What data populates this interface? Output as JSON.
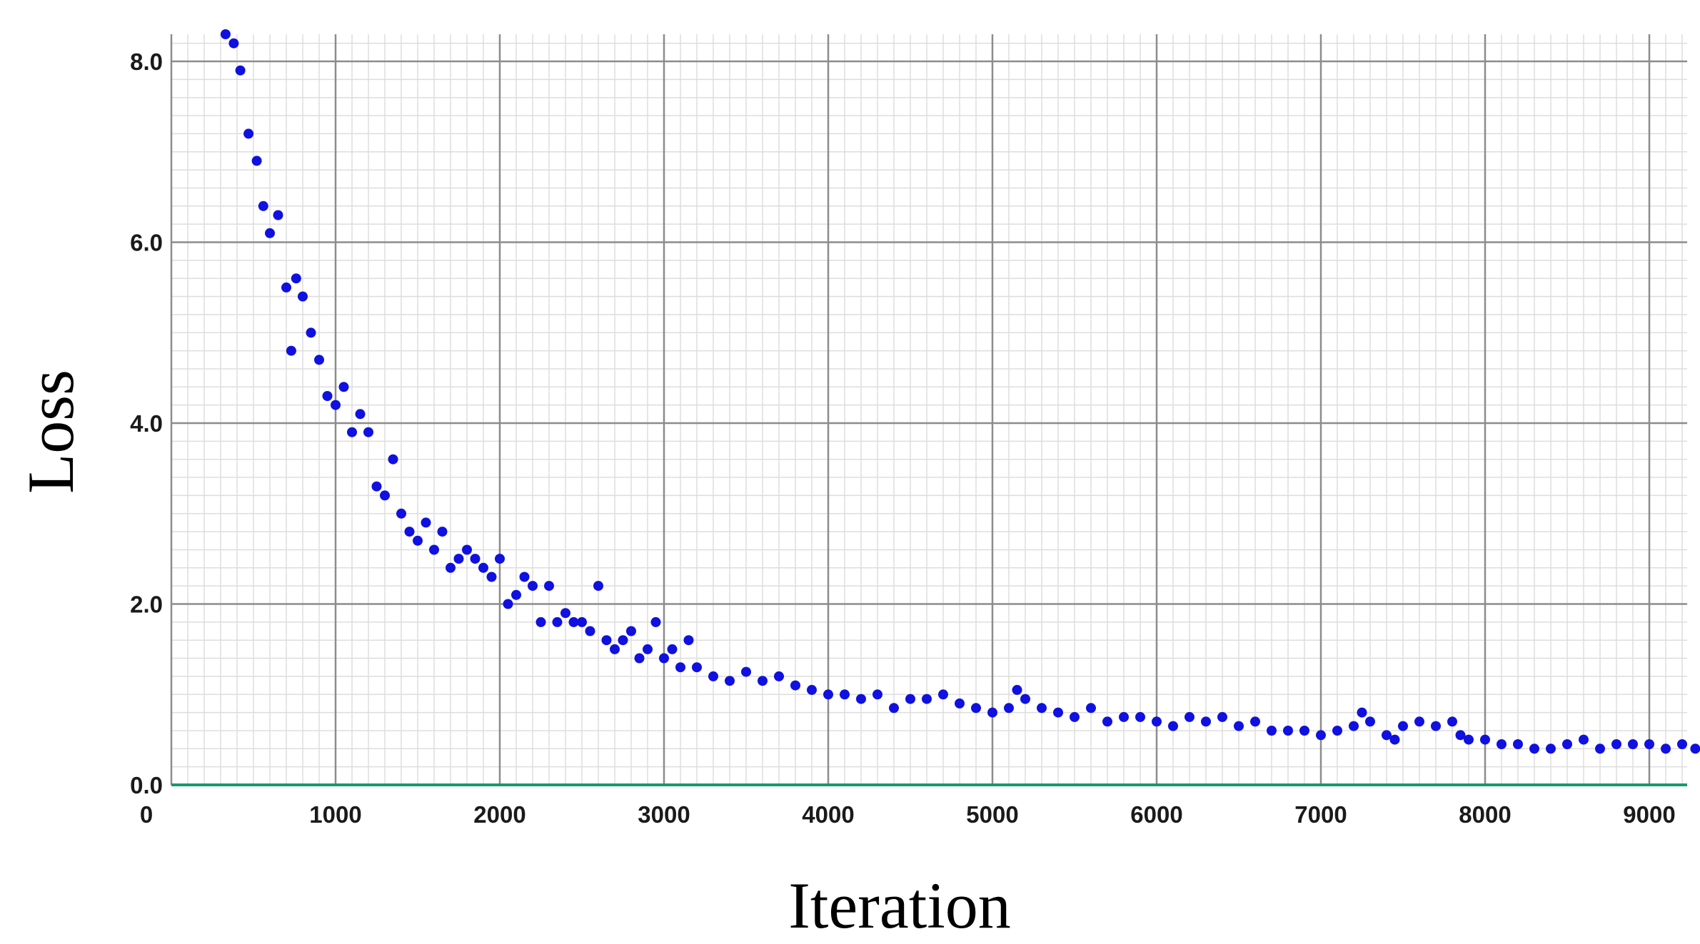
{
  "chart_data": {
    "type": "scatter",
    "title": "",
    "xlabel": "Iteration",
    "ylabel": "Loss",
    "xlim": [
      0,
      9300
    ],
    "ylim": [
      0,
      8.4
    ],
    "x_ticks": [
      0,
      1000,
      2000,
      3000,
      4000,
      5000,
      6000,
      7000,
      8000,
      9000
    ],
    "x_tick_labels": [
      "0",
      "1000",
      "2000",
      "3000",
      "4000",
      "5000",
      "6000",
      "7000",
      "8000",
      "9000"
    ],
    "y_ticks": [
      0,
      2,
      4,
      6,
      8
    ],
    "y_tick_labels": [
      "0.0",
      "2.0",
      "4.0",
      "6.0",
      "8.0"
    ],
    "grid": true,
    "marker_color": "#1010e0",
    "baseline_color": "#1a9a6a",
    "series": [
      {
        "x": [
          330,
          380,
          420,
          470,
          520,
          560,
          600,
          650,
          700,
          730,
          760,
          800,
          850,
          900,
          950,
          1000,
          1050,
          1100,
          1150,
          1200,
          1250,
          1300,
          1350,
          1400,
          1450,
          1500,
          1550,
          1600,
          1650,
          1700,
          1750,
          1800,
          1850,
          1900,
          1950,
          2000,
          2050,
          2100,
          2150,
          2200,
          2250,
          2300,
          2350,
          2400,
          2450,
          2500,
          2550,
          2600,
          2650,
          2700,
          2750,
          2800,
          2850,
          2900,
          2950,
          3000,
          3050,
          3100,
          3150,
          3200,
          3300,
          3400,
          3500,
          3600,
          3700,
          3800,
          3900,
          4000,
          4100,
          4200,
          4300,
          4400,
          4500,
          4600,
          4700,
          4800,
          4900,
          5000,
          5100,
          5150,
          5200,
          5300,
          5400,
          5500,
          5600,
          5700,
          5800,
          5900,
          6000,
          6100,
          6200,
          6300,
          6400,
          6500,
          6600,
          6700,
          6800,
          6900,
          7000,
          7100,
          7200,
          7250,
          7300,
          7400,
          7450,
          7500,
          7600,
          7700,
          7800,
          7850,
          7900,
          8000,
          8100,
          8200,
          8300,
          8400,
          8500,
          8600,
          8700,
          8800,
          8900,
          9000,
          9100,
          9200,
          9280
        ],
        "y": [
          8.3,
          8.2,
          7.9,
          7.2,
          6.9,
          6.4,
          6.1,
          6.3,
          5.5,
          4.8,
          5.6,
          5.4,
          5.0,
          4.7,
          4.3,
          4.2,
          4.4,
          3.9,
          4.1,
          3.9,
          3.3,
          3.2,
          3.6,
          3.0,
          2.8,
          2.7,
          2.9,
          2.6,
          2.8,
          2.4,
          2.5,
          2.6,
          2.5,
          2.4,
          2.3,
          2.5,
          2.0,
          2.1,
          2.3,
          2.2,
          1.8,
          2.2,
          1.8,
          1.9,
          1.8,
          1.8,
          1.7,
          2.2,
          1.6,
          1.5,
          1.6,
          1.7,
          1.4,
          1.5,
          1.8,
          1.4,
          1.5,
          1.3,
          1.6,
          1.3,
          1.2,
          1.15,
          1.25,
          1.15,
          1.2,
          1.1,
          1.05,
          1.0,
          1.0,
          0.95,
          1.0,
          0.85,
          0.95,
          0.95,
          1.0,
          0.9,
          0.85,
          0.8,
          0.85,
          1.05,
          0.95,
          0.85,
          0.8,
          0.75,
          0.85,
          0.7,
          0.75,
          0.75,
          0.7,
          0.65,
          0.75,
          0.7,
          0.75,
          0.65,
          0.7,
          0.6,
          0.6,
          0.6,
          0.55,
          0.6,
          0.65,
          0.8,
          0.7,
          0.55,
          0.5,
          0.65,
          0.7,
          0.65,
          0.7,
          0.55,
          0.5,
          0.5,
          0.45,
          0.45,
          0.4,
          0.4,
          0.45,
          0.5,
          0.4,
          0.45,
          0.45,
          0.45,
          0.4,
          0.45,
          0.4
        ]
      }
    ]
  }
}
